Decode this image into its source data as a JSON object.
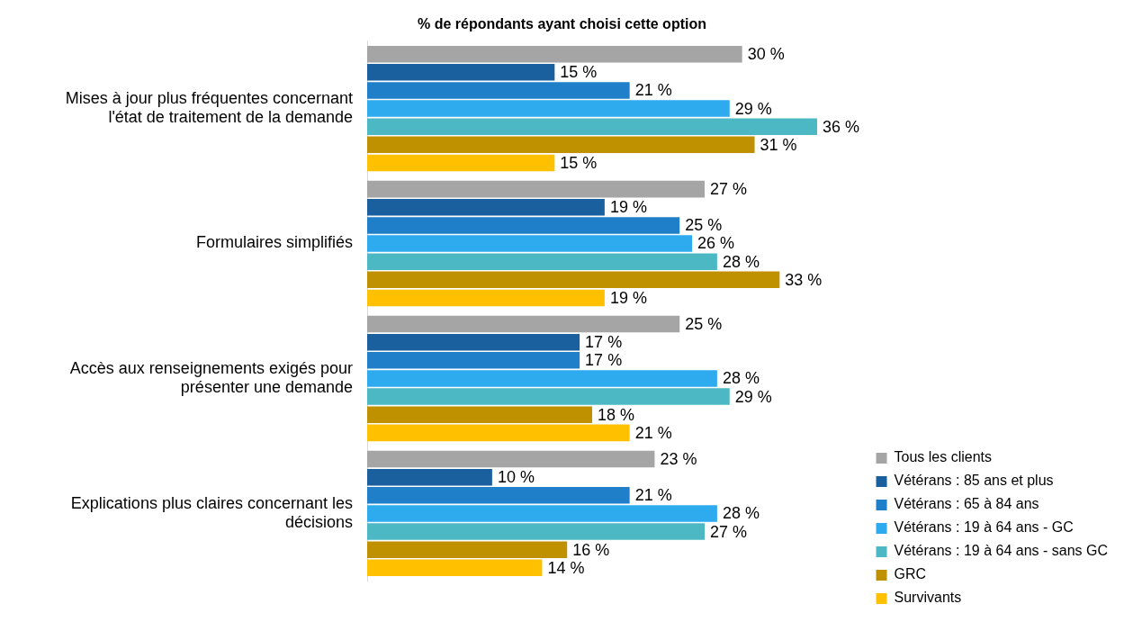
{
  "chart_data": {
    "type": "bar",
    "orientation": "horizontal",
    "title": "% de répondants ayant choisi cette option",
    "categories": [
      "Mises à jour plus fréquentes concernant l'état de traitement de la demande",
      "Formulaires simplifiés",
      "Accès aux renseignements exigés pour présenter une demande",
      "Explications plus claires concernant les décisions"
    ],
    "series": [
      {
        "name": "Tous les clients",
        "color": "#a5a5a5",
        "values": [
          30,
          27,
          25,
          23
        ],
        "value_labels": [
          "30 %",
          "27 %",
          "25 %",
          "23 %"
        ]
      },
      {
        "name": "Vétérans : 85 ans et plus",
        "color": "#1a5f9e",
        "values": [
          15,
          19,
          17,
          10
        ],
        "value_labels": [
          "15 %",
          "19 %",
          "17 %",
          "10 %"
        ]
      },
      {
        "name": "Vétérans : 65 à 84 ans",
        "color": "#1f80c9",
        "values": [
          21,
          25,
          17,
          21
        ],
        "value_labels": [
          "21 %",
          "25 %",
          "17 %",
          "21 %"
        ]
      },
      {
        "name": "Vétérans : 19 à 64 ans - GC",
        "color": "#2eaaef",
        "values": [
          29,
          26,
          28,
          28
        ],
        "value_labels": [
          "29 %",
          "26 %",
          "28 %",
          "28 %"
        ]
      },
      {
        "name": "Vétérans : 19 à 64 ans - sans GC",
        "color": "#4bb8c4",
        "values": [
          36,
          28,
          29,
          27
        ],
        "value_labels": [
          "36 %",
          "28 %",
          "29 %",
          "27 %"
        ]
      },
      {
        "name": "GRC",
        "color": "#bf9000",
        "values": [
          31,
          33,
          18,
          16
        ],
        "value_labels": [
          "31 %",
          "33 %",
          "18 %",
          "16 %"
        ]
      },
      {
        "name": "Survivants",
        "color": "#ffc000",
        "values": [
          15,
          19,
          21,
          14
        ],
        "value_labels": [
          "15 %",
          "19 %",
          "21 %",
          "14 %"
        ]
      }
    ],
    "legend": "bottom right",
    "grid": false
  }
}
